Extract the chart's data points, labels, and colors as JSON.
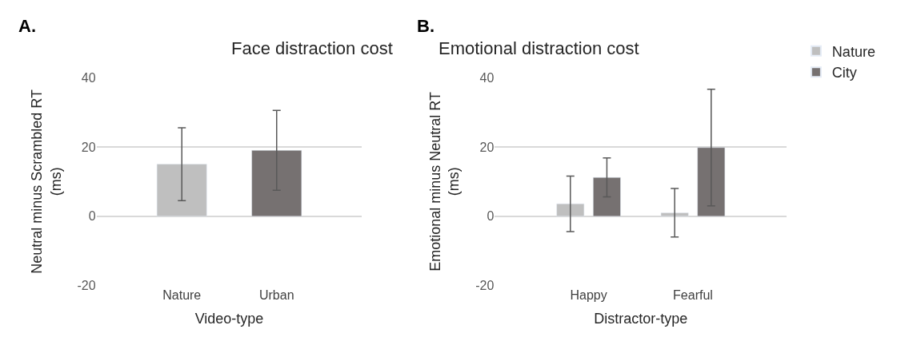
{
  "chart_data": [
    {
      "type": "bar",
      "title": "Face distraction cost",
      "xlabel": "Video-type",
      "ylabel": "Neutral minus Scrambled RT (ms)",
      "annotations": [
        "A."
      ],
      "categories": [
        "Nature",
        "Urban"
      ],
      "series": [
        {
          "colors": [
            "#bfbfbf",
            "#767171"
          ],
          "values": [
            15,
            19
          ],
          "errors": [
            10.5,
            11.5
          ]
        }
      ],
      "ylim": [
        -20,
        40
      ],
      "yticks": [
        -20,
        0,
        20,
        40
      ],
      "grid": "y"
    },
    {
      "type": "bar",
      "title": "Emotional distraction cost",
      "xlabel": "Distractor-type",
      "ylabel": "Emotional minus Neutral RT (ms)",
      "annotations": [
        "B."
      ],
      "categories": [
        "Happy",
        "Fearful"
      ],
      "series": [
        {
          "name": "Nature",
          "color": "#bfbfbf",
          "values": [
            3.6,
            1.0
          ],
          "errors": [
            8,
            7
          ]
        },
        {
          "name": "City",
          "color": "#767171",
          "values": [
            11.2,
            19.8
          ],
          "errors": [
            5.6,
            16.8
          ]
        }
      ],
      "ylim": [
        -20,
        40
      ],
      "yticks": [
        -20,
        0,
        20,
        40
      ],
      "grid": "y",
      "legend": "top right"
    }
  ]
}
